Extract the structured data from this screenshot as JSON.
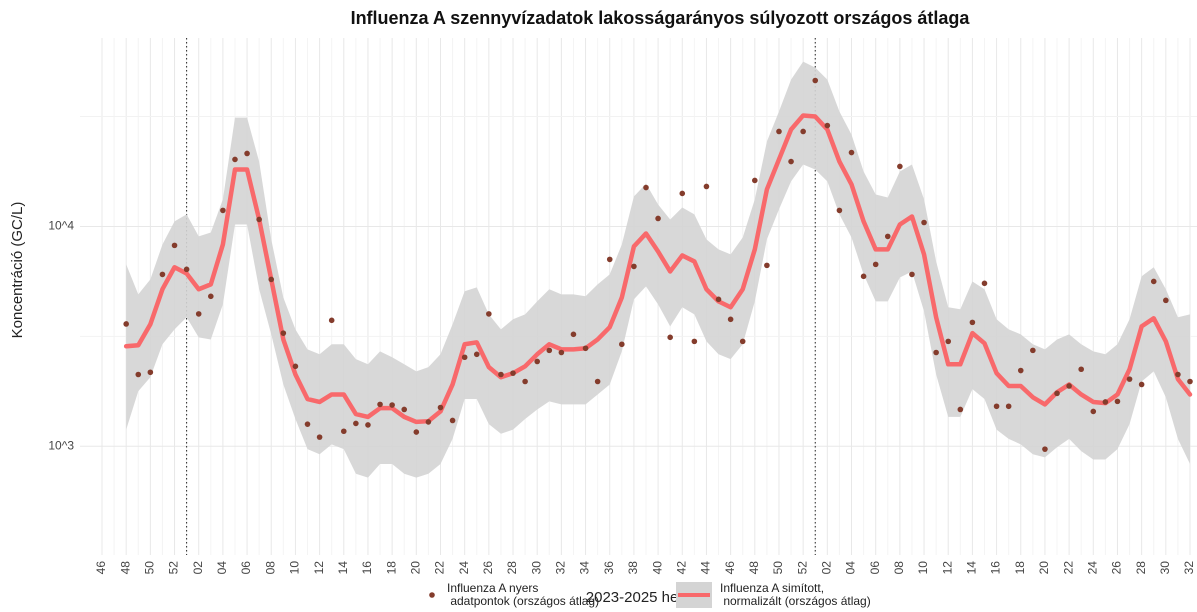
{
  "chart_data": {
    "type": "line",
    "title": "Influenza A szennyvízadatok lakosságarányos súlyozott országos átlaga",
    "x_label": "2023-2025 hetei",
    "y_label": "Koncentráció (GC/L)",
    "log_y": true,
    "grid": true,
    "legend_position": "bottom",
    "ylim": [
      320,
      72000
    ],
    "yticks": [
      {
        "value": 1000,
        "label": "10^3"
      },
      {
        "value": 10000,
        "label": "10^4"
      }
    ],
    "y_minor_grid": [
      3162,
      31623
    ],
    "vlines": [
      7,
      59
    ],
    "categories": [
      "46",
      null,
      "48",
      null,
      "50",
      null,
      "52",
      null,
      "02",
      null,
      "04",
      null,
      "06",
      null,
      "08",
      null,
      "10",
      null,
      "12",
      null,
      "14",
      null,
      "16",
      null,
      "18",
      null,
      "20",
      null,
      "22",
      null,
      "24",
      null,
      "26",
      null,
      "28",
      null,
      "30",
      null,
      "32",
      null,
      "34",
      null,
      "36",
      null,
      "38",
      null,
      "40",
      null,
      "42",
      null,
      "44",
      null,
      "46",
      null,
      "48",
      null,
      "50",
      null,
      "52",
      null,
      "02",
      null,
      "04",
      null,
      "06",
      null,
      "08",
      null,
      "10",
      null,
      "12",
      null,
      "14",
      null,
      "16",
      null,
      "18",
      null,
      "20",
      null,
      "22",
      null,
      "24",
      null,
      "26",
      null,
      "28",
      null,
      "30",
      null,
      "32"
    ],
    "series": [
      {
        "name": "Influenza A nyers\n adatpontok (országos átlag)",
        "type": "scatter",
        "color": "#843c2c",
        "values": [
          null,
          null,
          3600,
          2120,
          2170,
          6050,
          8200,
          6380,
          4000,
          4810,
          11830,
          20180,
          21480,
          10760,
          5740,
          3270,
          2310,
          1260,
          1100,
          3740,
          1170,
          1270,
          1250,
          1550,
          1540,
          1470,
          1160,
          1290,
          1500,
          1310,
          2540,
          2620,
          4000,
          2120,
          2150,
          1970,
          2430,
          2730,
          2670,
          3230,
          2790,
          1970,
          7080,
          2910,
          6580,
          15030,
          10870,
          3130,
          14130,
          3000,
          15200,
          4660,
          3780,
          3000,
          16190,
          6650,
          27040,
          19730,
          27040,
          46130,
          28770,
          11830,
          21680,
          5930,
          6720,
          9010,
          18750,
          6050,
          10420,
          2670,
          3000,
          1470,
          3660,
          5510,
          1520,
          1520,
          2210,
          2730,
          970,
          1740,
          1880,
          2240,
          1440,
          1590,
          1600,
          2020,
          1910,
          5620,
          4610,
          2120,
          1970
        ]
      },
      {
        "name": "Influenza A simított,\n normalizált (országos átlag)",
        "type": "smooth",
        "color": "#f8696b",
        "band_color": "#d4d4d4",
        "values": [
          null,
          null,
          2850,
          2880,
          3590,
          5180,
          6520,
          6110,
          5180,
          5450,
          8280,
          18160,
          18160,
          10760,
          5740,
          3060,
          2120,
          1640,
          1590,
          1720,
          1720,
          1400,
          1360,
          1490,
          1490,
          1360,
          1290,
          1300,
          1440,
          1910,
          2910,
          2970,
          2290,
          2060,
          2150,
          2310,
          2620,
          2910,
          2760,
          2760,
          2790,
          3060,
          3480,
          4750,
          8110,
          9290,
          7690,
          6240,
          7380,
          6930,
          5180,
          4560,
          4290,
          5180,
          7860,
          14730,
          20180,
          27610,
          31980,
          31620,
          27610,
          19730,
          15520,
          10540,
          7860,
          7860,
          10210,
          11100,
          7460,
          3860,
          2360,
          2360,
          3270,
          2940,
          2150,
          1880,
          1880,
          1670,
          1550,
          1760,
          1910,
          1720,
          1590,
          1570,
          1720,
          2240,
          3510,
          3820,
          3000,
          2020,
          1720
        ],
        "upper": [
          null,
          null,
          6720,
          4910,
          5740,
          8280,
          10540,
          11340,
          9010,
          9390,
          13270,
          31270,
          31270,
          19730,
          8730,
          4750,
          3400,
          2760,
          2620,
          2910,
          2910,
          2490,
          2360,
          2700,
          2540,
          2360,
          2190,
          2290,
          2620,
          3590,
          5070,
          5280,
          3980,
          3400,
          3780,
          3980,
          4560,
          5180,
          4910,
          4910,
          4810,
          5450,
          6050,
          8280,
          13680,
          15670,
          12590,
          10760,
          12200,
          11340,
          8730,
          7860,
          7460,
          8910,
          13270,
          24340,
          33330,
          46580,
          56230,
          52820,
          46580,
          33330,
          26180,
          17780,
          13970,
          13550,
          17780,
          19140,
          13270,
          6930,
          4290,
          4200,
          5620,
          5180,
          3780,
          3400,
          3230,
          2910,
          2760,
          3060,
          3230,
          2910,
          2700,
          2620,
          2910,
          3780,
          5930,
          6520,
          5180,
          3860,
          3980
        ],
        "lower": [
          null,
          null,
          1190,
          1780,
          2060,
          2910,
          3400,
          3860,
          3130,
          3060,
          4420,
          10210,
          10210,
          5180,
          3230,
          1910,
          1330,
          970,
          920,
          1020,
          970,
          750,
          720,
          830,
          830,
          750,
          720,
          750,
          830,
          1080,
          1640,
          1640,
          1260,
          1140,
          1190,
          1330,
          1470,
          1600,
          1550,
          1550,
          1550,
          1720,
          1910,
          2700,
          4660,
          5340,
          4420,
          3510,
          4290,
          3980,
          3000,
          2620,
          2490,
          2910,
          4560,
          8730,
          11950,
          16030,
          19140,
          18160,
          16030,
          11340,
          8910,
          6050,
          4560,
          4560,
          5860,
          6240,
          4110,
          2120,
          1360,
          1360,
          1820,
          1640,
          1190,
          1080,
          1020,
          920,
          890,
          990,
          1080,
          950,
          870,
          870,
          970,
          1260,
          1970,
          2190,
          1670,
          1080,
          830
        ]
      }
    ]
  }
}
